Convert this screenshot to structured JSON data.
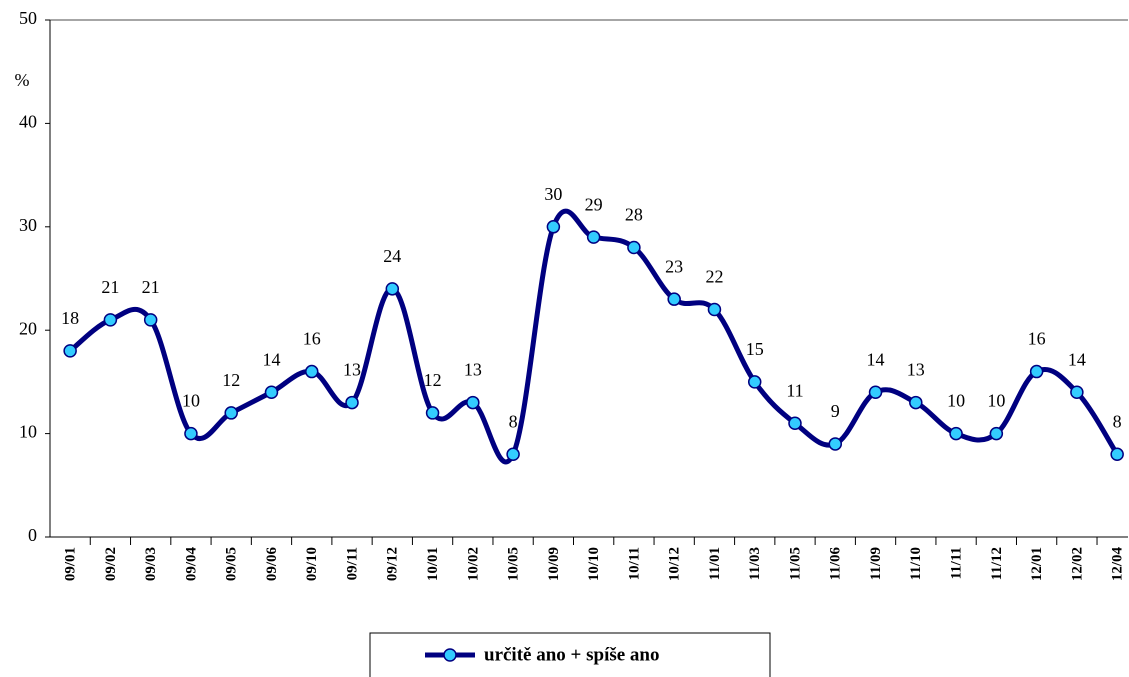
{
  "chart_data": {
    "type": "line",
    "ylabel": "%",
    "categories": [
      "09/01",
      "09/02",
      "09/03",
      "09/04",
      "09/05",
      "09/06",
      "09/10",
      "09/11",
      "09/12",
      "10/01",
      "10/02",
      "10/05",
      "10/09",
      "10/10",
      "10/11",
      "10/12",
      "11/01",
      "11/03",
      "11/05",
      "11/06",
      "11/09",
      "11/10",
      "11/11",
      "11/12",
      "12/01",
      "12/02",
      "12/04"
    ],
    "series": [
      {
        "name": "určitě ano + spíše ano",
        "color": "#000080",
        "marker_color": "#33ccff",
        "values": [
          18,
          21,
          21,
          10,
          12,
          14,
          16,
          13,
          24,
          12,
          13,
          8,
          30,
          29,
          28,
          23,
          22,
          15,
          11,
          9,
          14,
          13,
          10,
          10,
          16,
          14,
          8
        ]
      }
    ],
    "ylim": [
      0,
      50
    ],
    "yticks": [
      0,
      10,
      20,
      30,
      40,
      50
    ],
    "grid": false,
    "smooth": true,
    "legend": "bottom"
  }
}
